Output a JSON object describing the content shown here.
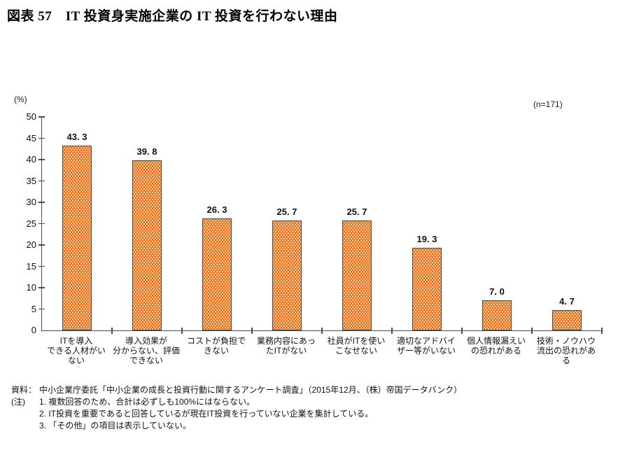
{
  "title": "図表 57　IT 投資身実施企業の IT 投資を行わない理由",
  "chart_data": {
    "type": "bar",
    "title": "IT投資身実施企業のIT投資を行わない理由",
    "unit_label": "(%)",
    "sample_label": "(n=171)",
    "ylim": [
      0,
      50
    ],
    "yticks": [
      0,
      5,
      10,
      15,
      20,
      25,
      30,
      35,
      40,
      45,
      50
    ],
    "grid": false,
    "legend": "none",
    "bar_color": "#F26D0E",
    "bar_border_color": "#474747",
    "bar_pattern": "white-dots",
    "categories": [
      [
        "ITを導入",
        "できる人材がい",
        "ない"
      ],
      [
        "導入効果が",
        "分からない、評価",
        "できない"
      ],
      [
        "コストが負担で",
        "きない"
      ],
      [
        "業務内容にあっ",
        "たITがない"
      ],
      [
        "社員がITを使い",
        "こなせない"
      ],
      [
        "適切なアドバイ",
        "ザー等がいない"
      ],
      [
        "個人情報漏えい",
        "の恐れがある"
      ],
      [
        "技術・ノウハウ",
        "流出の恐れがあ",
        "る"
      ]
    ],
    "values": [
      43.3,
      39.8,
      26.3,
      25.7,
      25.7,
      19.3,
      7.0,
      4.7
    ],
    "data_labels": [
      "43. 3",
      "39. 8",
      "26. 3",
      "25. 7",
      "25. 7",
      "19. 3",
      "7. 0",
      "4. 7"
    ]
  },
  "footer": {
    "rows": [
      {
        "prefix": "資料：",
        "text": "中小企業庁委託「中小企業の成長と投資行動に関するアンケート調査」（2015年12月、（株）帝国データバンク）"
      },
      {
        "prefix": "(注)",
        "text": "1. 複数回答のため、合計は必ずしも100%にはならない。"
      },
      {
        "prefix": "",
        "text": "2. IT投資を重要であると回答しているが現在IT投資を行っていない企業を集計している。"
      },
      {
        "prefix": "",
        "text": "3. 「その他」の項目は表示していない。"
      }
    ]
  }
}
